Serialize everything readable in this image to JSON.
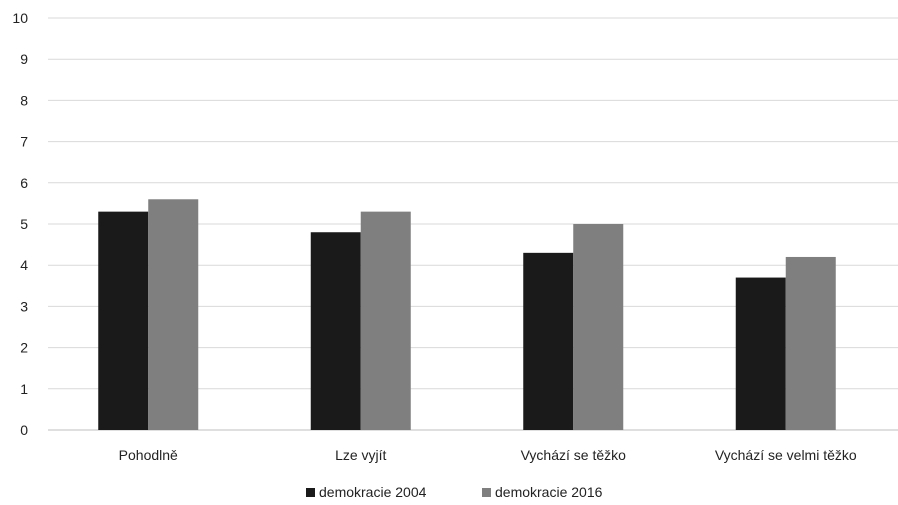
{
  "chart_data": {
    "type": "bar",
    "title": "",
    "xlabel": "",
    "ylabel": "",
    "categories": [
      "Pohodlně",
      "Lze vyjít",
      "Vychází se těžko",
      "Vychází se velmi těžko"
    ],
    "series": [
      {
        "name": "demokracie 2004",
        "values": [
          5.3,
          4.8,
          4.3,
          3.7
        ],
        "color": "#1a1a1a"
      },
      {
        "name": "demokracie 2016",
        "values": [
          5.6,
          5.3,
          5.0,
          4.2
        ],
        "color": "#7f7f7f"
      }
    ],
    "ylim": [
      0,
      10
    ],
    "yticks": [
      "0",
      "1",
      "2",
      "3",
      "4",
      "5",
      "6",
      "7",
      "8",
      "9",
      "10"
    ],
    "grid": true,
    "legend_position": "bottom"
  }
}
